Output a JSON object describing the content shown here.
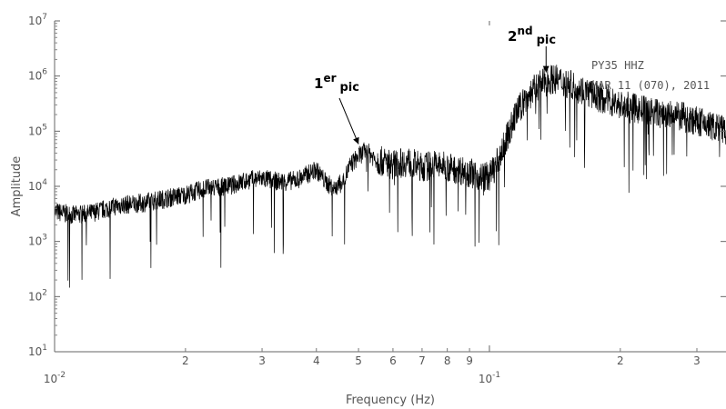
{
  "chart_data": {
    "type": "line",
    "title": "",
    "xlabel": "Frequency (Hz)",
    "ylabel": "Amplitude",
    "x_scale": "log",
    "y_scale": "log",
    "xlim": [
      0.01,
      0.35
    ],
    "ylim": [
      10,
      10000000
    ],
    "grid": false,
    "legend": "none",
    "x_major_ticks": [
      {
        "value": 0.01,
        "base": "10",
        "exp": "-2"
      },
      {
        "value": 0.1,
        "base": "10",
        "exp": "-1"
      }
    ],
    "x_minor_ticks": [
      {
        "value": 0.02,
        "label": "2"
      },
      {
        "value": 0.03,
        "label": "3"
      },
      {
        "value": 0.04,
        "label": "4"
      },
      {
        "value": 0.05,
        "label": "5"
      },
      {
        "value": 0.06,
        "label": "6"
      },
      {
        "value": 0.07,
        "label": "7"
      },
      {
        "value": 0.08,
        "label": "8"
      },
      {
        "value": 0.09,
        "label": "9"
      },
      {
        "value": 0.2,
        "label": "2"
      },
      {
        "value": 0.3,
        "label": "3"
      }
    ],
    "y_ticks": [
      {
        "value": 10,
        "base": "10",
        "exp": "1"
      },
      {
        "value": 100,
        "base": "10",
        "exp": "2"
      },
      {
        "value": 1000,
        "base": "10",
        "exp": "3"
      },
      {
        "value": 10000,
        "base": "10",
        "exp": "4"
      },
      {
        "value": 100000,
        "base": "10",
        "exp": "5"
      },
      {
        "value": 1000000,
        "base": "10",
        "exp": "6"
      },
      {
        "value": 10000000,
        "base": "10",
        "exp": "7"
      }
    ],
    "series": [
      {
        "color": "#000000",
        "envelope": {
          "x": [
            0.01,
            0.011,
            0.012,
            0.013,
            0.014,
            0.016,
            0.018,
            0.02,
            0.022,
            0.025,
            0.028,
            0.03,
            0.033,
            0.036,
            0.04,
            0.042,
            0.044,
            0.046,
            0.048,
            0.05,
            0.052,
            0.055,
            0.06,
            0.065,
            0.07,
            0.075,
            0.08,
            0.085,
            0.09,
            0.095,
            0.1,
            0.105,
            0.11,
            0.115,
            0.12,
            0.125,
            0.13,
            0.135,
            0.14,
            0.15,
            0.16,
            0.18,
            0.2,
            0.22,
            0.25,
            0.28,
            0.3,
            0.33,
            0.35
          ],
          "y": [
            3500,
            3000,
            3200,
            3800,
            4500,
            5000,
            6000,
            7000,
            9000,
            10000,
            13000,
            14000,
            12000,
            13000,
            20000,
            12000,
            9000,
            12000,
            25000,
            35000,
            45000,
            30000,
            25000,
            28000,
            22000,
            25000,
            22000,
            20000,
            18000,
            15000,
            15000,
            30000,
            80000,
            200000,
            350000,
            500000,
            700000,
            800000,
            900000,
            750000,
            600000,
            400000,
            300000,
            250000,
            200000,
            180000,
            150000,
            120000,
            100000
          ]
        }
      }
    ],
    "annotations": [
      {
        "main": "1",
        "sup": "er",
        "sub": "pic",
        "x": 0.05,
        "y": 50000
      },
      {
        "main": "2",
        "sup": "nd",
        "sub": "pic",
        "x": 0.135,
        "y": 1000000
      }
    ],
    "station_lines": [
      "PY35  HHZ",
      "MAR 11 (070), 2011"
    ]
  }
}
